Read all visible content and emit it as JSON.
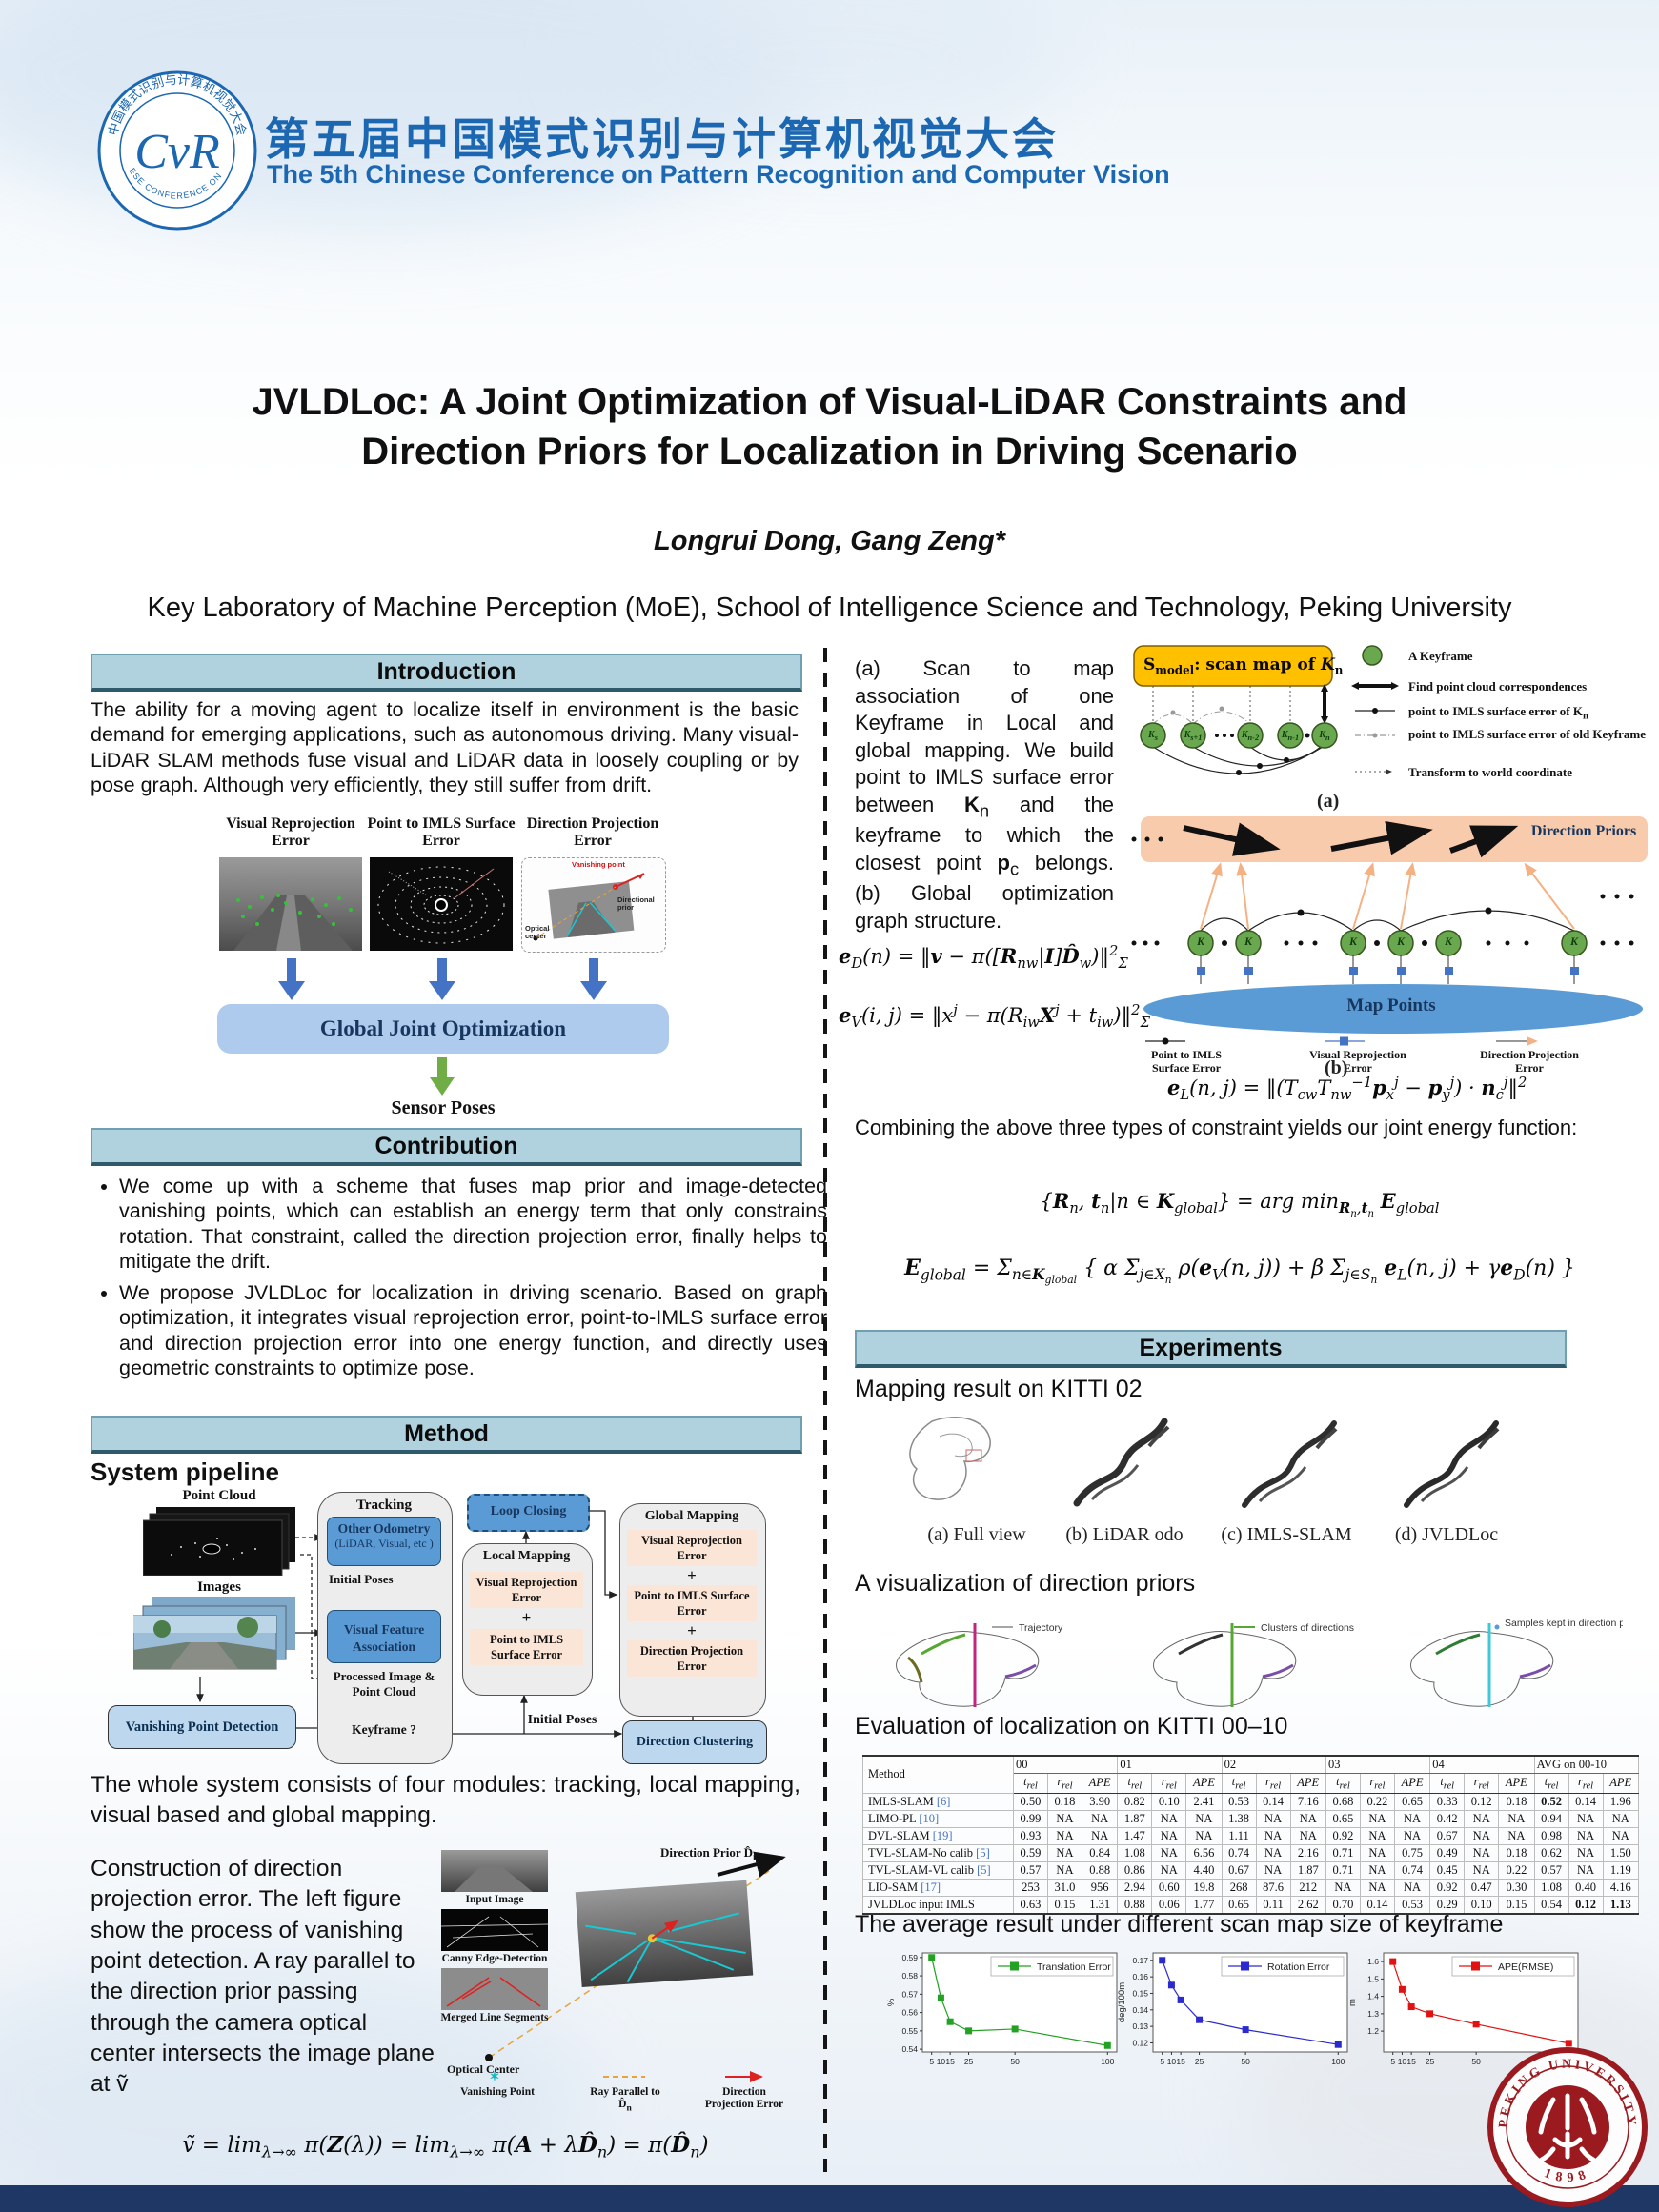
{
  "colors": {
    "accent_blue": "#1b67b2",
    "bar_bg": "#b0d2de",
    "box_blue": "#5b9bd5",
    "peach": "#fbe5d6",
    "light_blue": "#bdd7ee",
    "green_arrow": "#70ad47",
    "blue_arrow": "#4472c4",
    "navy": "#17365d",
    "smodel_orange": "#ffc000",
    "pku_red": "#9a1a1f",
    "keyframe_green": "#6aa84f"
  },
  "dots": "• • •",
  "header": {
    "title_cn": "第五届中国模式识别与计算机视觉大会",
    "title_en": "The 5th Chinese Conference on Pattern Recognition and Computer Vision",
    "logo_center": "CvR",
    "logo_ring_top": "中国模式识别与计算机视觉大会",
    "logo_ring_bottom": "CHINESE CONFERENCE ON PRCV"
  },
  "title": {
    "line1": "JVLDLoc: A Joint Optimization of Visual-LiDAR Constraints and",
    "line2": "Direction Priors for Localization in Driving Scenario",
    "authors": "Longrui Dong, Gang Zeng*",
    "affiliation": "Key Laboratory of Machine Perception (MoE), School of Intelligence Science and Technology, Peking University"
  },
  "intro": {
    "heading": "Introduction",
    "body": "The ability for a moving agent to localize itself in environment is the basic demand for emerging applications, such as autonomous driving. Many visual-LiDAR SLAM methods fuse visual and LiDAR data in loosely coupling or by pose graph. Although very efficiently, they still suffer from drift.",
    "figure": {
      "label1": "Visual Reprojection Error",
      "label2": "Point to IMLS Surface Error",
      "label3": "Direction Projection Error",
      "sub_vanishing": "Vanishing point",
      "sub_prior": "Directional prior",
      "sub_optical": "Optical center",
      "box": "Global Joint Optimization",
      "output": "Sensor  Poses"
    }
  },
  "contribution": {
    "heading": "Contribution",
    "bullets": [
      "We come up with a scheme that fuses map prior and image-detected vanishing points, which can establish an energy term that only constrains rotation. That constraint, called the direction projection error, finally helps to mitigate the drift.",
      "We propose JVLDLoc for localization in driving scenario. Based on graph optimization, it integrates visual reprojection error, point-to-IMLS surface error and direction projection error into one energy function, and directly uses geometric constraints to optimize pose."
    ]
  },
  "method": {
    "heading": "Method",
    "pipeline_title": "System pipeline",
    "pipeline": {
      "point_cloud": "Point Cloud",
      "images": "Images",
      "tracking": "Tracking",
      "other_odometry": "Other Odometry",
      "other_odometry_sub": "(LiDAR, Visual, etc )",
      "initial_poses": "Initial Poses",
      "vfa": "Visual Feature Association",
      "processed": "Processed Image & Point Cloud",
      "keyframe": "Keyframe ?",
      "vpd": "Vanishing Point Detection",
      "loop_closing": "Loop Closing",
      "local_mapping": "Local Mapping",
      "vre": "Visual Reprojection Error",
      "plus": "+",
      "p2imls": "Point to IMLS Surface Error",
      "global_mapping": "Global Mapping",
      "dpe": "Direction Projection Error",
      "initial_poses2": "Initial Poses",
      "direction_clustering": "Direction Clustering"
    },
    "summary": "The whole system consists of four modules: tracking, local mapping, visual based and global mapping.",
    "construction_text": "Construction of direction projection error. The left figure show the process of vanishing point detection. A ray parallel to the direction prior passing through the camera optical center intersects the image plane at ṽ",
    "construction_figure": {
      "input_image": "Input Image",
      "canny": "Canny Edge-Detection",
      "merged": "Merged Line Segments",
      "optical_center": "Optical Center",
      "vanishing_point": "Vanishing Point",
      "ray_parallel": "Ray Parallel to D̂<sub>n</sub>",
      "dir_proj_err": "Direction Projection Error",
      "dir_prior": "Direction Prior D̂<sub>n</sub>"
    },
    "vp_equation": "ṽ = lim<sub>λ→∞</sub> π(<b>Z</b>(λ)) = lim<sub>λ→∞</sub> π(<b>A</b> + λ<b>D̂</b><sub>n</sub>) = π(<b>D̂</b><sub>n</sub>)"
  },
  "right": {
    "scan_text": "(a) Scan to map association of one Keyframe in Local and global mapping. We build point to IMLS surface error between <b>K</b><sub>n</sub> and the keyframe to which the closest point <b>p</b><sub>c</sub> belongs. (b) Global optimization graph structure.",
    "diagram_a": {
      "smodel": "S<sub>model</sub>: scan map of <i>K</i><sub>n</sub>",
      "nodes": [
        "K<sub>s</sub>",
        "K<sub>s+1</sub>",
        "K<sub>n-2</sub>",
        "K<sub>n-1</sub>",
        "K<sub>n</sub>"
      ],
      "legend": [
        "A Keyframe",
        "Find point cloud correspondences",
        "point to IMLS surface error of K<sub>n</sub>",
        "point to IMLS surface error of old Keyframe",
        "Transform to world coordinate"
      ],
      "caption": "(a)"
    },
    "diagram_b": {
      "direction_priors": "Direction Priors",
      "map_points": "Map Points",
      "node_letter": "K",
      "legend": [
        "Point to IMLS Surface Error",
        "Visual Reprojection Error",
        "Direction Projection Error"
      ],
      "caption": "(b)"
    },
    "eq_d": "<b>e</b><sub>D</sub>(n) = ‖<b>v</b> − π([<b>R</b><sub>nw</sub>|<b>I</b>]<b>D̂</b><sub>w</sub>)‖<sup>2</sup><sub>Σ</sub>",
    "eq_v": "<b>e</b><sub>V</sub>(i, j) = ‖x<sup>j</sup> − π(R<sub>iw</sub><b>X</b><sup>j</sup> + t<sub>iw</sub>)‖<sup>2</sup><sub>Σ</sub>",
    "eq_l": "<b>e</b><sub>L</sub>(n, j) = ‖(T<sub>cw</sub>T<sub>nw</sub><sup>−1</sup><b>p</b><sub>x</sub><sup>j</sup> − <b>p</b><sub>y</sub><sup>j</sup>) · <b>n</b><sub>c</sub><sup>j</sup>‖<sup>2</sup>",
    "combine_text": "Combining the above three types of constraint yields our joint energy function:",
    "eq_argmin": "{<b>R</b><sub>n</sub>, <b>t</b><sub>n</sub>|n ∈ <b>K</b><sub>global</sub>} = arg min<sub><b>R</b><sub>n</sub>,<b>t</b><sub>n</sub></sub> <b>E</b><sub>global</sub>",
    "eq_global": "<b>E</b><sub>global</sub> = Σ<sub>n∈<b>K</b><sub>global</sub></sub> { α Σ<sub>j∈X<sub>n</sub></sub> ρ(<b>e</b><sub>V</sub>(n, j)) + β Σ<sub>j∈S<sub>n</sub></sub> <b>e</b><sub>L</sub>(n, j) + γ<b>e</b><sub>D</sub>(n) }"
  },
  "experiments": {
    "heading": "Experiments",
    "mapping_title": "Mapping result on KITTI 02",
    "mapping_captions": [
      "(a) Full view",
      "(b) LiDAR odo",
      "(c) IMLS-SLAM",
      "(d) JVLDLoc"
    ],
    "vis_title": "A visualization of direction priors",
    "vis_legends": [
      "Trajectory",
      "Clusters of directions",
      "Samples kept in direction prior"
    ],
    "table_title": "Evaluation of localization on KITTI 00–10",
    "avg_title": "The average result under different scan map size of keyframe"
  },
  "table": {
    "method_header": "Method",
    "group_headers": [
      "00",
      "01",
      "02",
      "03",
      "04",
      "AVG on 00-10"
    ],
    "sub_headers": [
      {
        "b": "t",
        "s": "rel"
      },
      {
        "b": "r",
        "s": "rel"
      },
      {
        "b": "APE",
        "s": ""
      }
    ],
    "rows": [
      {
        "method": "IMLS-SLAM",
        "ref": "[6]",
        "values": [
          "0.50",
          "0.18",
          "3.90",
          "0.82",
          "0.10",
          "2.41",
          "0.53",
          "0.14",
          "7.16",
          "0.68",
          "0.22",
          "0.65",
          "0.33",
          "0.12",
          "0.18",
          "0.52",
          "0.14",
          "1.96"
        ],
        "bold": [
          15
        ]
      },
      {
        "method": "LIMO-PL",
        "ref": "[10]",
        "values": [
          "0.99",
          "NA",
          "NA",
          "1.87",
          "NA",
          "NA",
          "1.38",
          "NA",
          "NA",
          "0.65",
          "NA",
          "NA",
          "0.42",
          "NA",
          "NA",
          "0.94",
          "NA",
          "NA"
        ],
        "bold": []
      },
      {
        "method": "DVL-SLAM",
        "ref": "[19]",
        "values": [
          "0.93",
          "NA",
          "NA",
          "1.47",
          "NA",
          "NA",
          "1.11",
          "NA",
          "NA",
          "0.92",
          "NA",
          "NA",
          "0.67",
          "NA",
          "NA",
          "0.98",
          "NA",
          "NA"
        ],
        "bold": []
      },
      {
        "method": "TVL-SLAM-No calib",
        "ref": "[5]",
        "values": [
          "0.59",
          "NA",
          "0.84",
          "1.08",
          "NA",
          "6.56",
          "0.74",
          "NA",
          "2.16",
          "0.71",
          "NA",
          "0.75",
          "0.49",
          "NA",
          "0.18",
          "0.62",
          "NA",
          "1.50"
        ],
        "bold": []
      },
      {
        "method": "TVL-SLAM-VL calib",
        "ref": "[5]",
        "values": [
          "0.57",
          "NA",
          "0.88",
          "0.86",
          "NA",
          "4.40",
          "0.67",
          "NA",
          "1.87",
          "0.71",
          "NA",
          "0.74",
          "0.45",
          "NA",
          "0.22",
          "0.57",
          "NA",
          "1.19"
        ],
        "bold": []
      },
      {
        "method": "LIO-SAM",
        "ref": "[17]",
        "values": [
          "253",
          "31.0",
          "956",
          "2.94",
          "0.60",
          "19.8",
          "268",
          "87.6",
          "212",
          "NA",
          "NA",
          "NA",
          "0.92",
          "0.47",
          "0.30",
          "1.08",
          "0.40",
          "4.16"
        ],
        "bold": []
      },
      {
        "method": "JVLDLoc input IMLS",
        "ref": "",
        "values": [
          "0.63",
          "0.15",
          "1.31",
          "0.88",
          "0.06",
          "1.77",
          "0.65",
          "0.11",
          "2.62",
          "0.70",
          "0.14",
          "0.53",
          "0.29",
          "0.10",
          "0.15",
          "0.54",
          "0.12",
          "1.13"
        ],
        "bold": [
          16,
          17
        ]
      }
    ]
  },
  "chart_data": [
    {
      "type": "line",
      "legend": "Translation Error",
      "color": "#22a122",
      "ylabel": "%",
      "x": [
        5,
        10,
        15,
        25,
        50,
        100
      ],
      "y": [
        0.59,
        0.568,
        0.555,
        0.55,
        0.551,
        0.542
      ],
      "xtick_labels": [
        "5",
        "10",
        "15",
        "25",
        "50",
        "100"
      ],
      "xlim": [
        0,
        105
      ],
      "ytick_vals": [
        0.54,
        0.55,
        0.56,
        0.57,
        0.58,
        0.59
      ],
      "ytick_labels": [
        "0.54",
        "0.55",
        "0.56",
        "0.57",
        "0.58",
        "0.59"
      ],
      "ylim": [
        0.5385,
        0.5925
      ]
    },
    {
      "type": "line",
      "legend": "Rotation Error",
      "color": "#2a2ad0",
      "ylabel": "deg/100m",
      "x": [
        5,
        10,
        15,
        25,
        50,
        100
      ],
      "y": [
        0.17,
        0.155,
        0.146,
        0.134,
        0.128,
        0.119
      ],
      "xtick_labels": [
        "5",
        "10",
        "15",
        "25",
        "50",
        "100"
      ],
      "xlim": [
        0,
        105
      ],
      "ytick_vals": [
        0.12,
        0.13,
        0.14,
        0.15,
        0.16,
        0.17
      ],
      "ytick_labels": [
        "0.12",
        "0.13",
        "0.14",
        "0.15",
        "0.16",
        "0.17"
      ],
      "ylim": [
        0.1145,
        0.1745
      ]
    },
    {
      "type": "line",
      "legend": "APE(RMSE)",
      "color": "#e01212",
      "ylabel": "m",
      "x": [
        5,
        10,
        15,
        25,
        50,
        100
      ],
      "y": [
        1.6,
        1.44,
        1.34,
        1.3,
        1.24,
        1.13
      ],
      "xtick_labels": [
        "5",
        "10",
        "15",
        "25",
        "50",
        "100"
      ],
      "xlim": [
        0,
        105
      ],
      "ytick_vals": [
        1.2,
        1.3,
        1.4,
        1.5,
        1.6
      ],
      "ytick_labels": [
        "1.2",
        "1.3",
        "1.4",
        "1.5",
        "1.6"
      ],
      "ylim": [
        1.08,
        1.65
      ]
    }
  ],
  "footer": {
    "seal_top": "PEKING UNIVERSITY",
    "seal_bottom": "1898"
  }
}
